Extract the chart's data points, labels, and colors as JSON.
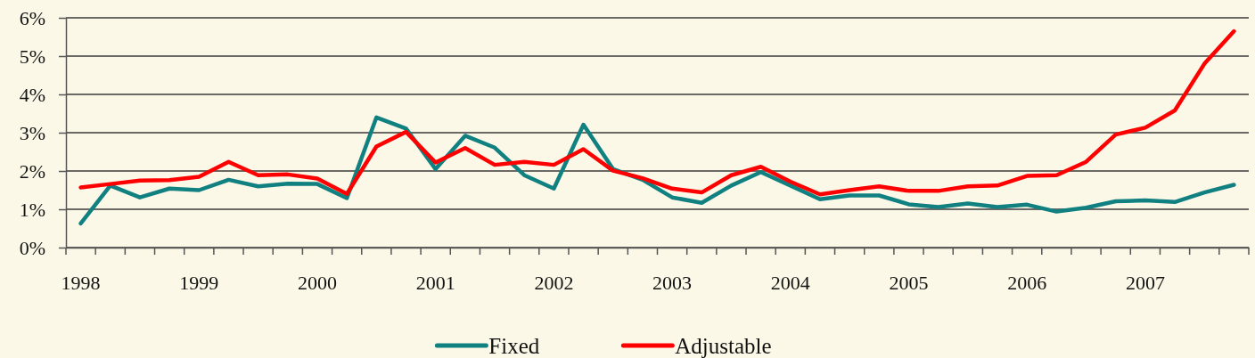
{
  "chart_data": {
    "type": "line",
    "categories": [
      "1998",
      null,
      null,
      null,
      "1999",
      null,
      null,
      null,
      "2000",
      null,
      null,
      null,
      "2001",
      null,
      null,
      null,
      "2002",
      null,
      null,
      null,
      "2003",
      null,
      null,
      null,
      "2004",
      null,
      null,
      null,
      "2005",
      null,
      null,
      null,
      "2006",
      null,
      null,
      null,
      "2007",
      null,
      null,
      null
    ],
    "series": [
      {
        "name": "Fixed",
        "color": "#118080",
        "values": [
          0.63,
          1.62,
          1.31,
          1.54,
          1.5,
          1.77,
          1.6,
          1.67,
          1.66,
          1.29,
          3.4,
          3.11,
          2.05,
          2.92,
          2.61,
          1.89,
          1.54,
          3.21,
          2.05,
          1.77,
          1.31,
          1.17,
          1.62,
          1.97,
          1.62,
          1.26,
          1.36,
          1.36,
          1.13,
          1.06,
          1.15,
          1.06,
          1.12,
          0.94,
          1.04,
          1.21,
          1.23,
          1.19,
          1.44,
          1.64
        ]
      },
      {
        "name": "Adjustable",
        "color": "#ff0000",
        "values": [
          1.57,
          1.66,
          1.75,
          1.76,
          1.85,
          2.24,
          1.89,
          1.91,
          1.8,
          1.4,
          2.64,
          3.02,
          2.22,
          2.6,
          2.16,
          2.24,
          2.16,
          2.57,
          2.01,
          1.81,
          1.54,
          1.44,
          1.89,
          2.11,
          1.72,
          1.39,
          1.5,
          1.6,
          1.48,
          1.48,
          1.6,
          1.62,
          1.87,
          1.89,
          2.24,
          2.95,
          3.13,
          3.58,
          4.8,
          5.65
        ]
      }
    ],
    "ylim": [
      0,
      6
    ],
    "yticks": [
      {
        "value": 0,
        "label": "0%"
      },
      {
        "value": 1,
        "label": "1%"
      },
      {
        "value": 2,
        "label": "2%"
      },
      {
        "value": 3,
        "label": "3%"
      },
      {
        "value": 4,
        "label": "4%"
      },
      {
        "value": 5,
        "label": "5%"
      },
      {
        "value": 6,
        "label": "6%"
      }
    ],
    "grid": "y",
    "legend": "bottom"
  }
}
